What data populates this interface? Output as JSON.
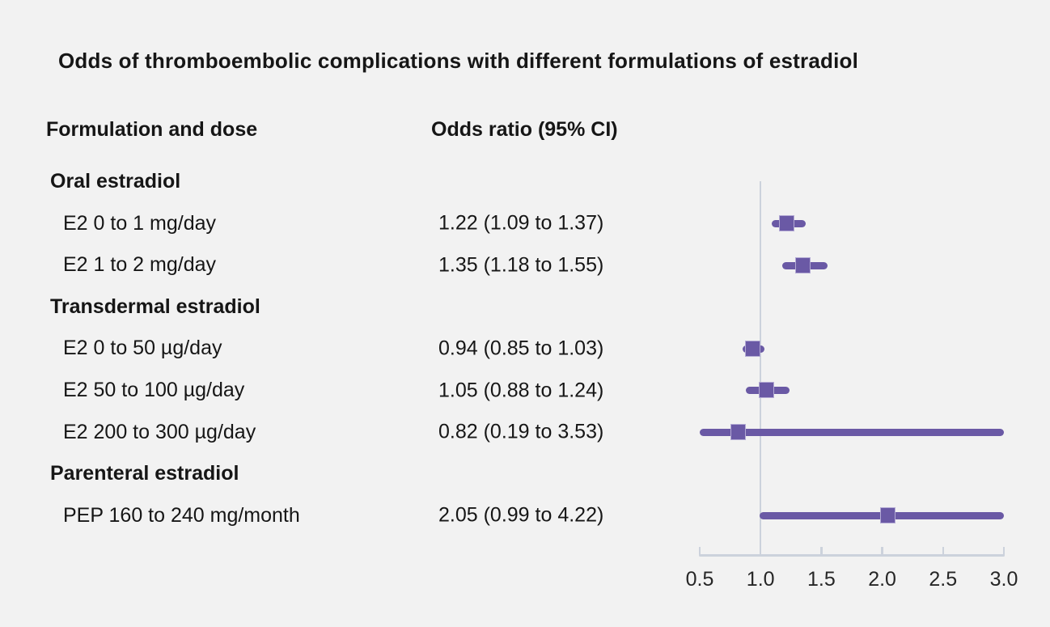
{
  "title": "Odds of thromboembolic complications with different formulations of estradiol",
  "columns": {
    "left": "Formulation and dose",
    "right": "Odds ratio (95% CI)"
  },
  "rows": [
    {
      "type": "section",
      "label": "Oral estradiol"
    },
    {
      "type": "item",
      "label": "E2 0 to 1 mg/day",
      "value_text": "1.22 (1.09 to 1.37)"
    },
    {
      "type": "item",
      "label": "E2 1 to 2 mg/day",
      "value_text": "1.35 (1.18 to 1.55)"
    },
    {
      "type": "section",
      "label": "Transdermal estradiol"
    },
    {
      "type": "item",
      "label": "E2 0 to 50 µg/day",
      "value_text": "0.94 (0.85 to 1.03)"
    },
    {
      "type": "item",
      "label": "E2 50 to 100 µg/day",
      "value_text": "1.05 (0.88 to 1.24)"
    },
    {
      "type": "item",
      "label": "E2 200 to 300 µg/day",
      "value_text": "0.82 (0.19 to 3.53)"
    },
    {
      "type": "section",
      "label": "Parenteral estradiol"
    },
    {
      "type": "item",
      "label": "PEP 160 to 240 mg/month",
      "value_text": "2.05 (0.99 to 4.22)"
    }
  ],
  "chart_data": {
    "type": "scatter",
    "subtype": "forest-plot",
    "title": "Odds of thromboembolic complications with different formulations of estradiol",
    "xlabel": "Odds ratio",
    "xlim": [
      0.5,
      3.0
    ],
    "xticks": [
      0.5,
      1.0,
      1.5,
      2.0,
      2.5,
      3.0
    ],
    "xtick_labels": [
      "0.5",
      "1.0",
      "1.5",
      "2.0",
      "2.5",
      "3.0"
    ],
    "reference_line": 1.0,
    "grid": false,
    "legend": false,
    "series": [
      {
        "name": "E2 0 to 1 mg/day",
        "or": 1.22,
        "ci_low": 1.09,
        "ci_high": 1.37,
        "row_index": 1
      },
      {
        "name": "E2 1 to 2 mg/day",
        "or": 1.35,
        "ci_low": 1.18,
        "ci_high": 1.55,
        "row_index": 2
      },
      {
        "name": "E2 0 to 50 µg/day",
        "or": 0.94,
        "ci_low": 0.85,
        "ci_high": 1.03,
        "row_index": 4
      },
      {
        "name": "E2 50 to 100 µg/day",
        "or": 1.05,
        "ci_low": 0.88,
        "ci_high": 1.24,
        "row_index": 5
      },
      {
        "name": "E2 200 to 300 µg/day",
        "or": 0.82,
        "ci_low": 0.19,
        "ci_high": 3.53,
        "row_index": 6
      },
      {
        "name": "PEP 160 to 240 mg/month",
        "or": 2.05,
        "ci_low": 0.99,
        "ci_high": 4.22,
        "row_index": 8
      }
    ]
  },
  "colors": {
    "background": "#f2f2f2",
    "text": "#161616",
    "marker_purple": "#6a59a5",
    "marker_border": "#b3aad4",
    "axis_gray": "#ccd2dc"
  }
}
